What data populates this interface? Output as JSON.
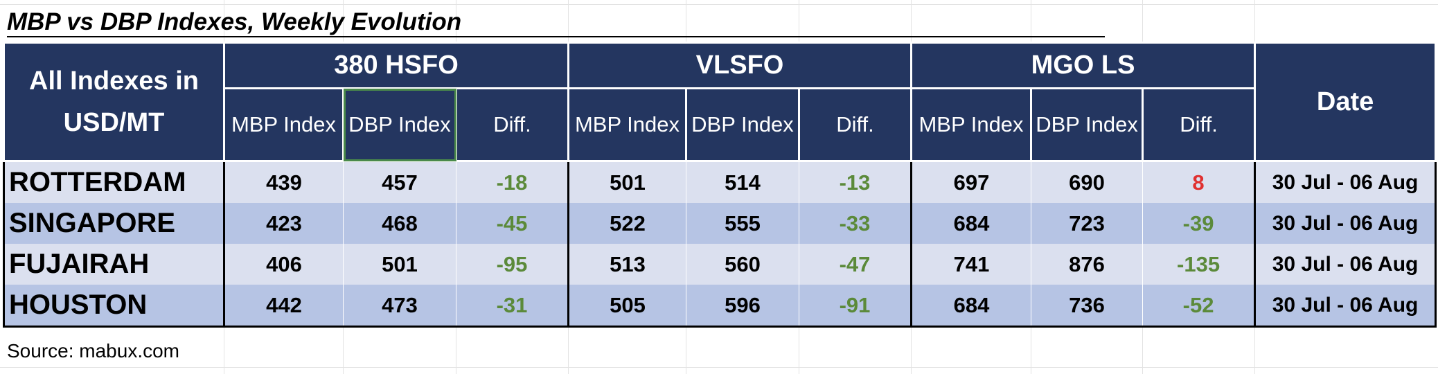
{
  "title": "MBP vs DBP Indexes, Weekly Evolution",
  "table": {
    "corner_label": "All Indexes in USD/MT",
    "groups": [
      "380 HSFO",
      "VLSFO",
      "MGO LS"
    ],
    "date_header": "Date",
    "sub_headers": [
      "MBP Index",
      "DBP Index",
      "Diff."
    ],
    "rows": [
      {
        "port": "ROTTERDAM",
        "hsfo": [
          "439",
          "457",
          "-18"
        ],
        "vlsfo": [
          "501",
          "514",
          "-13"
        ],
        "mgo": [
          "697",
          "690",
          "8"
        ],
        "date": "30 Jul - 06 Aug"
      },
      {
        "port": "SINGAPORE",
        "hsfo": [
          "423",
          "468",
          "-45"
        ],
        "vlsfo": [
          "522",
          "555",
          "-33"
        ],
        "mgo": [
          "684",
          "723",
          "-39"
        ],
        "date": "30 Jul - 06 Aug"
      },
      {
        "port": "FUJAIRAH",
        "hsfo": [
          "406",
          "501",
          "-95"
        ],
        "vlsfo": [
          "513",
          "560",
          "-47"
        ],
        "mgo": [
          "741",
          "876",
          "-135"
        ],
        "date": "30 Jul - 06 Aug"
      },
      {
        "port": "HOUSTON",
        "hsfo": [
          "442",
          "473",
          "-31"
        ],
        "vlsfo": [
          "505",
          "596",
          "-91"
        ],
        "mgo": [
          "684",
          "736",
          "-52"
        ],
        "date": "30 Jul - 06 Aug"
      }
    ]
  },
  "source": "Source: mabux.com",
  "colors": {
    "header_bg": "#243660",
    "row_light": "#dbe0ef",
    "row_dark": "#b6c4e4",
    "negative_diff": "#5b8a3a",
    "positive_diff": "#e03030"
  }
}
